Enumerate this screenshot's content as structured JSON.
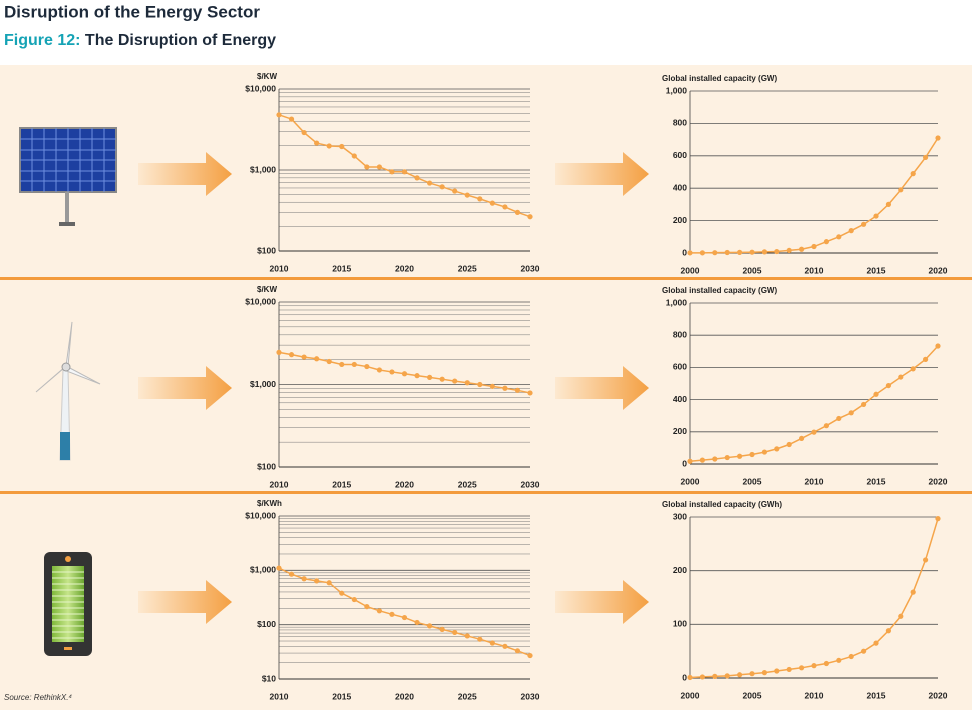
{
  "header": {
    "title": "Disruption of the Energy Sector",
    "figure_label": "Figure 12:",
    "figure_title": "The Disruption of Energy"
  },
  "source": "Source: RethinkX.⁴",
  "chart_data": [
    {
      "type": "line",
      "y_label": "$/KW",
      "log": true,
      "color": "#f5a54a",
      "grid": true,
      "x": [
        2010,
        2011,
        2012,
        2013,
        2014,
        2015,
        2016,
        2017,
        2018,
        2019,
        2020,
        2021,
        2022,
        2023,
        2024,
        2025,
        2026,
        2027,
        2028,
        2029,
        2030
      ],
      "values": [
        4800,
        4250,
        2900,
        2150,
        1980,
        1950,
        1490,
        1090,
        1090,
        950,
        950,
        800,
        690,
        620,
        550,
        490,
        440,
        390,
        350,
        300,
        265
      ],
      "xlim": [
        2010,
        2030
      ],
      "xticks": [
        2010,
        2015,
        2020,
        2025,
        2030
      ],
      "ylim": [
        100,
        10000
      ],
      "yticks": [
        {
          "value": 100,
          "label": "$100"
        },
        {
          "value": 1000,
          "label": "$1,000"
        },
        {
          "value": 10000,
          "label": "$10,000"
        }
      ],
      "minor_yticks": [
        200,
        300,
        400,
        500,
        600,
        700,
        800,
        900,
        2000,
        3000,
        4000,
        5000,
        6000,
        7000,
        8000,
        9000
      ]
    },
    {
      "type": "line",
      "y_label": "Global installed capacity (GW)",
      "color": "#f5a54a",
      "grid": true,
      "x": [
        2000,
        2001,
        2002,
        2003,
        2004,
        2005,
        2006,
        2007,
        2008,
        2009,
        2010,
        2011,
        2012,
        2013,
        2014,
        2015,
        2016,
        2017,
        2018,
        2019,
        2020
      ],
      "values": [
        1,
        1,
        2,
        3,
        4,
        5,
        7,
        9,
        16,
        23,
        40,
        70,
        100,
        138,
        177,
        228,
        300,
        390,
        490,
        590,
        710
      ],
      "xlim": [
        2000,
        2020
      ],
      "xticks": [
        2000,
        2005,
        2010,
        2015,
        2020
      ],
      "ylim": [
        0,
        1000
      ],
      "yticks": [
        0,
        200,
        400,
        600,
        800,
        {
          "value": 1000,
          "label": "1,000"
        }
      ]
    },
    {
      "type": "line",
      "y_label": "$/KW",
      "log": true,
      "color": "#f5a54a",
      "grid": true,
      "x": [
        2010,
        2011,
        2012,
        2013,
        2014,
        2015,
        2016,
        2017,
        2018,
        2019,
        2020,
        2021,
        2022,
        2023,
        2024,
        2025,
        2026,
        2027,
        2028,
        2029,
        2030
      ],
      "values": [
        2450,
        2300,
        2150,
        2050,
        1900,
        1750,
        1750,
        1650,
        1500,
        1420,
        1350,
        1280,
        1220,
        1160,
        1100,
        1050,
        1000,
        950,
        900,
        850,
        790
      ],
      "xlim": [
        2010,
        2030
      ],
      "xticks": [
        2010,
        2015,
        2020,
        2025,
        2030
      ],
      "ylim": [
        100,
        10000
      ],
      "yticks": [
        {
          "value": 100,
          "label": "$100"
        },
        {
          "value": 1000,
          "label": "$1,000"
        },
        {
          "value": 10000,
          "label": "$10,000"
        }
      ],
      "minor_yticks": [
        200,
        300,
        400,
        500,
        600,
        700,
        800,
        900,
        2000,
        3000,
        4000,
        5000,
        6000,
        7000,
        8000,
        9000
      ]
    },
    {
      "type": "line",
      "y_label": "Global installed capacity (GW)",
      "color": "#f5a54a",
      "grid": true,
      "x": [
        2000,
        2001,
        2002,
        2003,
        2004,
        2005,
        2006,
        2007,
        2008,
        2009,
        2010,
        2011,
        2012,
        2013,
        2014,
        2015,
        2016,
        2017,
        2018,
        2019,
        2020
      ],
      "values": [
        17,
        24,
        31,
        40,
        48,
        59,
        74,
        94,
        121,
        159,
        198,
        238,
        283,
        318,
        370,
        433,
        487,
        540,
        591,
        650,
        733
      ],
      "xlim": [
        2000,
        2020
      ],
      "xticks": [
        2000,
        2005,
        2010,
        2015,
        2020
      ],
      "ylim": [
        0,
        1000
      ],
      "yticks": [
        0,
        200,
        400,
        600,
        800,
        {
          "value": 1000,
          "label": "1,000"
        }
      ]
    },
    {
      "type": "line",
      "y_label": "$/KWh",
      "log": true,
      "color": "#f5a54a",
      "grid": true,
      "x": [
        2010,
        2011,
        2012,
        2013,
        2014,
        2015,
        2016,
        2017,
        2018,
        2019,
        2020,
        2021,
        2022,
        2023,
        2024,
        2025,
        2026,
        2027,
        2028,
        2029,
        2030
      ],
      "values": [
        1100,
        850,
        700,
        640,
        590,
        380,
        290,
        215,
        180,
        155,
        135,
        110,
        95,
        82,
        72,
        62,
        54,
        46,
        40,
        33,
        27
      ],
      "xlim": [
        2010,
        2030
      ],
      "xticks": [
        2010,
        2015,
        2020,
        2025,
        2030
      ],
      "ylim": [
        10,
        10000
      ],
      "yticks": [
        {
          "value": 10,
          "label": "$10"
        },
        {
          "value": 100,
          "label": "$100"
        },
        {
          "value": 1000,
          "label": "$1,000"
        },
        {
          "value": 10000,
          "label": "$10,000"
        }
      ],
      "minor_yticks": [
        20,
        30,
        40,
        50,
        60,
        70,
        80,
        90,
        200,
        300,
        400,
        500,
        600,
        700,
        800,
        900,
        2000,
        3000,
        4000,
        5000,
        6000,
        7000,
        8000,
        9000
      ]
    },
    {
      "type": "line",
      "y_label": "Global installed capacity (GWh)",
      "color": "#f5a54a",
      "grid": true,
      "x": [
        2000,
        2001,
        2002,
        2003,
        2004,
        2005,
        2006,
        2007,
        2008,
        2009,
        2010,
        2011,
        2012,
        2013,
        2014,
        2015,
        2016,
        2017,
        2018,
        2019,
        2020
      ],
      "values": [
        1,
        2,
        3,
        4,
        6,
        8,
        10,
        13,
        16,
        19,
        23,
        27,
        33,
        40,
        50,
        65,
        88,
        115,
        160,
        220,
        297
      ],
      "xlim": [
        2000,
        2020
      ],
      "xticks": [
        2000,
        2005,
        2010,
        2015,
        2020
      ],
      "ylim": [
        0,
        300
      ],
      "yticks": [
        0,
        100,
        200,
        300
      ]
    }
  ]
}
